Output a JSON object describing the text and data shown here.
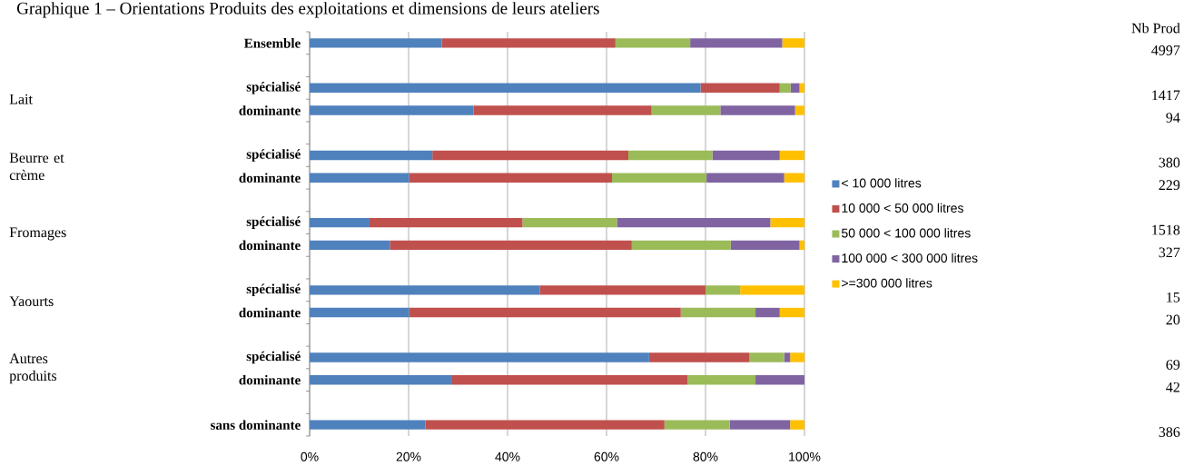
{
  "chart_data": {
    "type": "bar",
    "orientation": "horizontal",
    "stacked": true,
    "title": "Graphique 1 – Orientations Produits des exploitations et dimensions de leurs ateliers",
    "categories": [
      "Ensemble",
      null,
      "spécialisé",
      "dominante",
      null,
      "spécialisé",
      "dominante",
      null,
      "spécialisé",
      "dominante",
      null,
      "spécialisé",
      "dominante",
      null,
      "spécialisé",
      "dominante",
      null,
      "sans dominante"
    ],
    "series": [
      {
        "name": "< 10 000 litres",
        "color": "#4f81bd",
        "values": [
          26.7,
          null,
          79.0,
          33.1,
          null,
          24.8,
          20.1,
          null,
          12.1,
          16.2,
          null,
          46.5,
          20.1,
          null,
          68.6,
          28.8,
          null,
          23.4
        ]
      },
      {
        "name": "10 000 < 50 000 litres",
        "color": "#c0504d",
        "values": [
          35.1,
          null,
          16.0,
          36.0,
          null,
          39.6,
          41.0,
          null,
          30.9,
          48.9,
          null,
          33.5,
          54.9,
          null,
          20.3,
          47.6,
          null,
          48.3
        ]
      },
      {
        "name": "50 000 < 100 000 litres",
        "color": "#9bbb59",
        "values": [
          15.1,
          null,
          2.2,
          13.9,
          null,
          17.0,
          19.1,
          null,
          19.1,
          20.0,
          null,
          7.0,
          15.1,
          null,
          7.0,
          13.7,
          null,
          13.2
        ]
      },
      {
        "name": "100 000 < 300 000 litres",
        "color": "#8064a2",
        "values": [
          18.6,
          null,
          1.8,
          15.1,
          null,
          13.6,
          15.7,
          null,
          31.0,
          13.9,
          null,
          0,
          4.9,
          null,
          1.2,
          9.9,
          null,
          12.2
        ]
      },
      {
        "name": ">=300 000 litres",
        "color": "#ffc000",
        "values": [
          4.5,
          null,
          1.0,
          1.9,
          null,
          5.0,
          4.1,
          null,
          6.9,
          1.0,
          null,
          13.0,
          5.0,
          null,
          2.9,
          0,
          null,
          2.9
        ]
      }
    ],
    "xlim": [
      0,
      100
    ],
    "xticks": [
      {
        "value": 0,
        "label": "0%"
      },
      {
        "value": 20,
        "label": "20%"
      },
      {
        "value": 40,
        "label": "40%"
      },
      {
        "value": 60,
        "label": "60%"
      },
      {
        "value": 80,
        "label": "80%"
      },
      {
        "value": 100,
        "label": "100%"
      }
    ],
    "grid": "x",
    "legend": "right",
    "annotations": [
      "Nb Prod",
      "4997",
      "1417",
      "94",
      "380",
      "229",
      "1518",
      "327",
      "15",
      "20",
      "69",
      "42",
      "386",
      "Lait",
      "Beurre et crème",
      "Fromages",
      "Yaourts",
      "Autres produits"
    ]
  }
}
